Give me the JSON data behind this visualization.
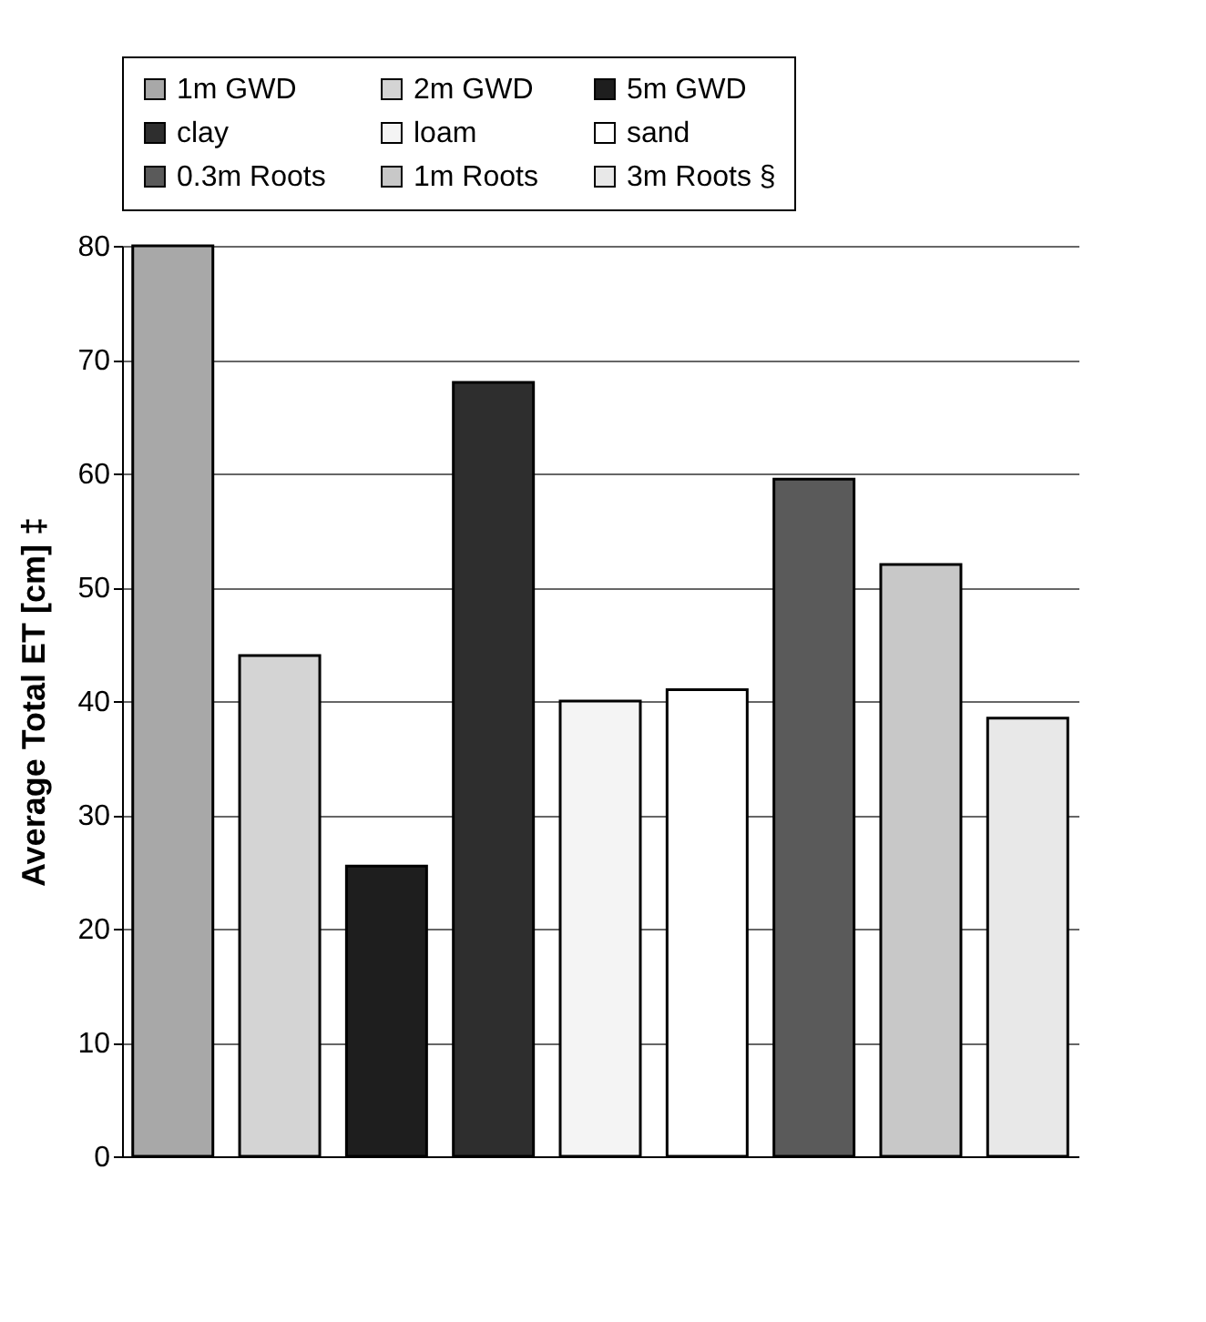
{
  "chart_data": {
    "type": "bar",
    "ylabel": "Average Total ET [cm] ‡",
    "categories": [
      null,
      null,
      null,
      null,
      null,
      null,
      null,
      null,
      null
    ],
    "series": [
      {
        "name": "1m GWD",
        "color": "#a8a8a8",
        "values": [
          80,
          null,
          null,
          null,
          null,
          null,
          null,
          null,
          null
        ]
      },
      {
        "name": "2m GWD",
        "color": "#d4d4d4",
        "values": [
          null,
          44,
          null,
          null,
          null,
          null,
          null,
          null,
          null
        ]
      },
      {
        "name": "5m GWD",
        "color": "#1e1e1e",
        "values": [
          null,
          null,
          25.5,
          null,
          null,
          null,
          null,
          null,
          null
        ]
      },
      {
        "name": "clay",
        "color": "#2e2e2e",
        "values": [
          null,
          null,
          null,
          68,
          null,
          null,
          null,
          null,
          null
        ]
      },
      {
        "name": "loam",
        "color": "#f4f4f4",
        "values": [
          null,
          null,
          null,
          null,
          40,
          null,
          null,
          null,
          null
        ]
      },
      {
        "name": "sand",
        "color": "#ffffff",
        "values": [
          null,
          null,
          null,
          null,
          null,
          41,
          null,
          null,
          null
        ]
      },
      {
        "name": "0.3m Roots",
        "color": "#5a5a5a",
        "values": [
          null,
          null,
          null,
          null,
          null,
          null,
          59.5,
          null,
          null
        ]
      },
      {
        "name": "1m Roots",
        "color": "#c8c8c8",
        "values": [
          null,
          null,
          null,
          null,
          null,
          null,
          null,
          52,
          null
        ]
      },
      {
        "name": "3m Roots §",
        "color": "#e8e8e8",
        "values": [
          null,
          null,
          null,
          null,
          null,
          null,
          null,
          null,
          38.5
        ]
      }
    ],
    "ylim": [
      0,
      80
    ],
    "yticks": [
      0,
      10,
      20,
      30,
      40,
      50,
      60,
      70,
      80
    ],
    "grid": "y",
    "legend": "top"
  }
}
